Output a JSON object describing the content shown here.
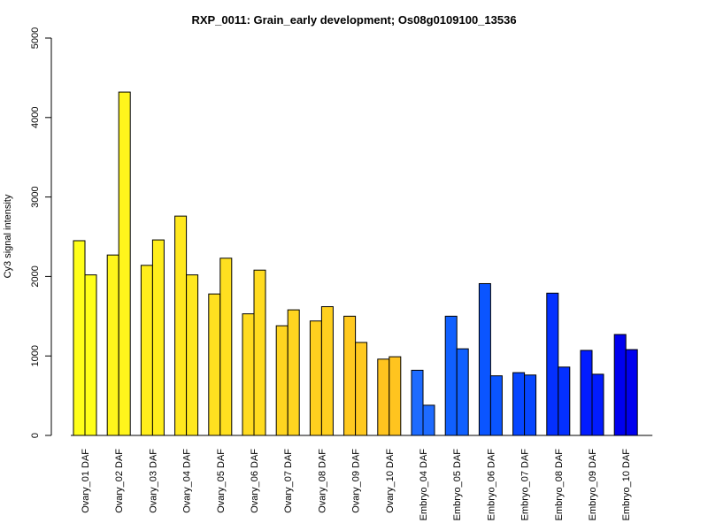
{
  "chart_data": {
    "type": "bar",
    "title": "RXP_0011: Grain_early development; Os08g0109100_13536",
    "xlabel": "",
    "ylabel": "Cy3 signal intensity",
    "ylim": [
      0,
      5000
    ],
    "yticks": [
      0,
      1000,
      2000,
      3000,
      4000,
      5000
    ],
    "grid": false,
    "categories": [
      "Ovary_01 DAF",
      "Ovary_02 DAF",
      "Ovary_03 DAF",
      "Ovary_04 DAF",
      "Ovary_05 DAF",
      "Ovary_06 DAF",
      "Ovary_07 DAF",
      "Ovary_08 DAF",
      "Ovary_09 DAF",
      "Ovary_10 DAF",
      "Embryo_04 DAF",
      "Embryo_05 DAF",
      "Embryo_06 DAF",
      "Embryo_07 DAF",
      "Embryo_08 DAF",
      "Embryo_09 DAF",
      "Embryo_10 DAF"
    ],
    "colors": [
      "#ffff1a",
      "#fff51c",
      "#ffee1c",
      "#ffe81e",
      "#ffe020",
      "#ffdb20",
      "#ffd520",
      "#ffd01f",
      "#ffc920",
      "#ffc41f",
      "#1e6bff",
      "#1060ff",
      "#0a55ff",
      "#0646ff",
      "#0430ff",
      "#021cff",
      "#0000ee"
    ],
    "series": [
      {
        "values": [
          2450,
          2270,
          2140,
          2760,
          1780,
          1530,
          1380,
          1440,
          1500,
          960,
          820,
          1500,
          1910,
          790,
          1790,
          1070,
          1270
        ]
      },
      {
        "values": [
          2020,
          4320,
          2460,
          2020,
          2230,
          2080,
          1580,
          1620,
          1170,
          990,
          380,
          1090,
          750,
          760,
          860,
          770,
          1080
        ]
      }
    ]
  }
}
